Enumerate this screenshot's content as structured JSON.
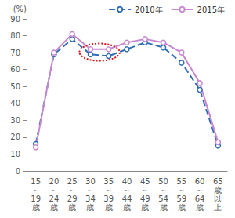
{
  "chart_data": {
    "type": "line",
    "y_label": "(%)",
    "categories": [
      "15～19歳",
      "20～24歳",
      "25～29歳",
      "30～34歳",
      "35～39歳",
      "40～44歳",
      "45～49歳",
      "50～54歳",
      "55～59歳",
      "60～64歳",
      "65歳以上"
    ],
    "series": [
      {
        "name": "2010年",
        "color": "#2f6db5",
        "line_style": "dashed",
        "marker": "circle",
        "values": [
          16,
          69,
          78,
          69,
          68,
          72,
          76,
          73,
          64,
          48,
          15
        ]
      },
      {
        "name": "2015年",
        "color": "#c788cf",
        "line_style": "solid",
        "marker": "circle",
        "values": [
          14,
          70,
          81,
          72,
          72,
          76,
          78,
          76,
          70,
          52,
          17
        ]
      }
    ],
    "ylim": [
      0,
      90
    ],
    "yticks": [
      0,
      10,
      20,
      30,
      40,
      50,
      60,
      70,
      80,
      90
    ],
    "grid": false,
    "legend": "top-right"
  }
}
